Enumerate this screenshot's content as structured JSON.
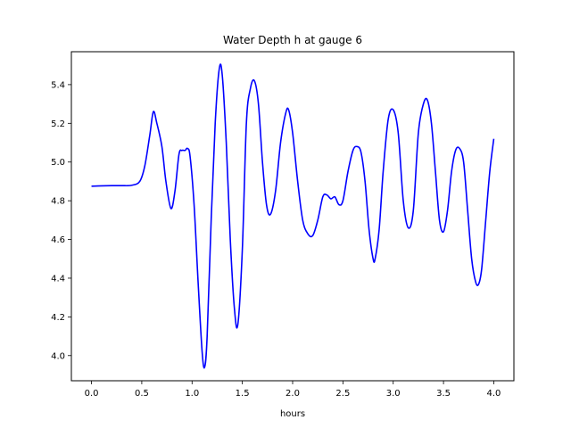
{
  "chart_data": {
    "type": "line",
    "title": "Water Depth h at gauge 6",
    "xlabel": "hours",
    "ylabel": "",
    "xlim": [
      -0.2,
      4.2
    ],
    "ylim": [
      3.87,
      5.57
    ],
    "xticks": [
      0.0,
      0.5,
      1.0,
      1.5,
      2.0,
      2.5,
      3.0,
      3.5,
      4.0
    ],
    "xtick_labels": [
      "0.0",
      "0.5",
      "1.0",
      "1.5",
      "2.0",
      "2.5",
      "3.0",
      "3.5",
      "4.0"
    ],
    "yticks": [
      4.0,
      4.2,
      4.4,
      4.6,
      4.8,
      5.0,
      5.2,
      5.4
    ],
    "ytick_labels": [
      "4.0",
      "4.2",
      "4.4",
      "4.6",
      "4.8",
      "5.0",
      "5.2",
      "5.4"
    ],
    "grid": false,
    "series": [
      {
        "color": "#0000ff",
        "x": [
          0.0,
          0.1,
          0.2,
          0.3,
          0.4,
          0.48,
          0.53,
          0.58,
          0.615,
          0.65,
          0.7,
          0.74,
          0.79,
          0.83,
          0.87,
          0.9,
          0.93,
          0.955,
          0.98,
          1.02,
          1.06,
          1.1,
          1.125,
          1.15,
          1.19,
          1.23,
          1.27,
          1.3,
          1.34,
          1.38,
          1.42,
          1.455,
          1.5,
          1.54,
          1.58,
          1.62,
          1.66,
          1.7,
          1.74,
          1.78,
          1.83,
          1.88,
          1.93,
          1.96,
          2.0,
          2.05,
          2.1,
          2.15,
          2.2,
          2.25,
          2.3,
          2.34,
          2.38,
          2.42,
          2.46,
          2.5,
          2.55,
          2.6,
          2.64,
          2.68,
          2.72,
          2.76,
          2.8,
          2.82,
          2.86,
          2.9,
          2.95,
          3.0,
          3.05,
          3.1,
          3.15,
          3.2,
          3.25,
          3.3,
          3.34,
          3.38,
          3.42,
          3.46,
          3.5,
          3.54,
          3.58,
          3.62,
          3.66,
          3.7,
          3.74,
          3.78,
          3.82,
          3.85,
          3.88,
          3.92,
          3.96,
          4.0
        ],
        "y": [
          4.875,
          4.877,
          4.878,
          4.878,
          4.88,
          4.9,
          4.98,
          5.14,
          5.26,
          5.2,
          5.08,
          4.9,
          4.76,
          4.85,
          5.04,
          5.06,
          5.06,
          5.07,
          5.03,
          4.78,
          4.38,
          4.02,
          3.94,
          4.1,
          4.7,
          5.2,
          5.48,
          5.45,
          5.1,
          4.6,
          4.25,
          4.16,
          4.55,
          5.2,
          5.38,
          5.42,
          5.3,
          5.0,
          4.78,
          4.73,
          4.85,
          5.1,
          5.25,
          5.27,
          5.15,
          4.9,
          4.7,
          4.63,
          4.62,
          4.7,
          4.82,
          4.83,
          4.81,
          4.82,
          4.78,
          4.8,
          4.95,
          5.06,
          5.08,
          5.05,
          4.9,
          4.65,
          4.5,
          4.5,
          4.65,
          4.95,
          5.22,
          5.27,
          5.15,
          4.8,
          4.66,
          4.75,
          5.15,
          5.3,
          5.32,
          5.2,
          4.95,
          4.7,
          4.64,
          4.75,
          4.95,
          5.06,
          5.07,
          5.0,
          4.75,
          4.5,
          4.38,
          4.37,
          4.45,
          4.7,
          4.95,
          5.12
        ]
      }
    ]
  }
}
